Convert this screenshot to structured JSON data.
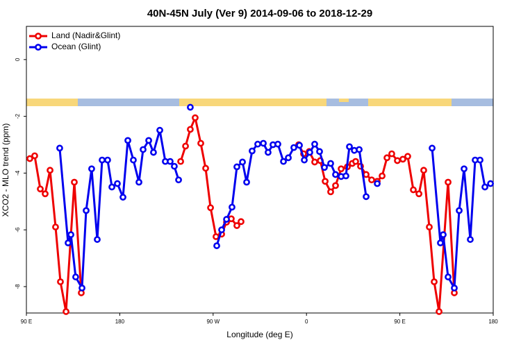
{
  "chart_data": {
    "type": "line",
    "title": "40N-45N July (Ver 9)   2014-09-06 to 2018-12-29",
    "xlabel": "Longitude (deg E)",
    "ylabel": "XCO2 - MLO trend (ppm)",
    "xlim": [
      90,
      540
    ],
    "ylim": [
      -8.93,
      1.17
    ],
    "xticks": [
      {
        "value": 90,
        "label": "90 E"
      },
      {
        "value": 180,
        "label": "180"
      },
      {
        "value": 270,
        "label": "90 W"
      },
      {
        "value": 360,
        "label": "0"
      },
      {
        "value": 450,
        "label": "90 E"
      },
      {
        "value": 540,
        "label": "180"
      }
    ],
    "yticks": [
      0,
      -2,
      -4,
      -6,
      -8
    ],
    "legend": "top-left",
    "series": [
      {
        "name": "Land (Nadir&Glint)",
        "color": "#ee0000",
        "x": [
          93.3,
          98.0,
          103.4,
          108.1,
          112.8,
          118.1,
          122.8,
          128.2,
          136.2,
          142.9,
          null,
          238.7,
          243.4,
          248.0,
          252.7,
          258.1,
          262.8,
          267.5,
          272.8,
          278.2,
          282.9,
          287.5,
          292.9,
          296.9,
          null,
          352.5,
          357.2,
          362.6,
          367.9,
          373.3,
          378.0,
          383.3,
          388.0,
          393.4,
          399.4,
          404.1,
          407.4,
          412.1,
          417.5,
          422.8,
          428.2,
          432.9,
          437.6,
          442.2,
          447.6,
          452.9,
          457.6,
          463.0,
          468.4,
          473.0,
          478.4,
          483.1,
          487.8,
          496.5,
          502.5
        ],
        "values": [
          -3.49,
          -3.39,
          -4.56,
          -4.73,
          -3.9,
          -5.9,
          -7.83,
          -8.88,
          -4.32,
          -8.22,
          null,
          -3.59,
          -3.05,
          -2.46,
          -2.05,
          -2.95,
          -3.83,
          -5.22,
          -6.24,
          -6.15,
          -5.73,
          -5.61,
          -5.85,
          -5.71,
          null,
          -3.0,
          -3.32,
          -3.24,
          -3.61,
          -3.56,
          -4.29,
          -4.66,
          -4.44,
          -3.85,
          -3.78,
          -3.66,
          -3.59,
          -3.76,
          -4.05,
          -4.24,
          -4.29,
          -4.1,
          -3.46,
          -3.32,
          -3.56,
          -3.51,
          -3.41,
          -4.59,
          -4.73,
          -3.9,
          -5.9,
          -7.83,
          -8.88,
          -4.32,
          -8.22
        ]
      },
      {
        "name": "Ocean (Glint)",
        "color": "#0000ee",
        "x": [
          122.1,
          130.2,
          132.9,
          137.5,
          143.6,
          147.6,
          152.9,
          158.3,
          163.0,
          168.3,
          172.4,
          177.7,
          183.1,
          187.8,
          193.1,
          198.5,
          202.5,
          207.9,
          212.5,
          218.6,
          223.9,
          228.6,
          232.6,
          236.7,
          null,
          248.0,
          null,
          273.5,
          278.2,
          282.9,
          288.2,
          292.9,
          298.3,
          302.3,
          307.6,
          313.0,
          318.4,
          323.0,
          327.7,
          332.4,
          337.8,
          342.5,
          347.8,
          353.2,
          357.9,
          363.2,
          367.9,
          372.6,
          377.3,
          383.3,
          388.0,
          393.4,
          398.0,
          401.4,
          406.1,
          410.8,
          417.5,
          null,
          428.2,
          null,
          481.1,
          489.1,
          491.8,
          496.5,
          502.5,
          507.2,
          511.9,
          517.9,
          522.6,
          527.3,
          532.0,
          537.4
        ],
        "values": [
          -3.12,
          -6.46,
          -6.17,
          -7.66,
          -8.05,
          -5.32,
          -3.85,
          -6.34,
          -3.54,
          -3.54,
          -4.49,
          -4.37,
          -4.85,
          -2.85,
          -3.54,
          -4.32,
          -3.17,
          -2.85,
          -3.27,
          -2.49,
          -3.59,
          -3.59,
          -3.76,
          -4.24,
          null,
          -1.68,
          null,
          -6.56,
          -6.0,
          -5.63,
          -5.2,
          -3.78,
          -3.61,
          -4.32,
          -3.22,
          -2.98,
          -2.95,
          -3.27,
          -3.0,
          -2.98,
          -3.59,
          -3.46,
          -3.1,
          -3.02,
          -3.54,
          -3.27,
          -2.98,
          -3.24,
          -3.8,
          -3.66,
          -4.05,
          -4.12,
          -4.1,
          -3.07,
          -3.2,
          -3.17,
          -4.83,
          null,
          -4.37,
          null,
          -3.12,
          -6.46,
          -6.17,
          -7.66,
          -8.05,
          -5.32,
          -3.85,
          -6.34,
          -3.54,
          -3.54,
          -4.49,
          -4.37
        ]
      }
    ]
  }
}
